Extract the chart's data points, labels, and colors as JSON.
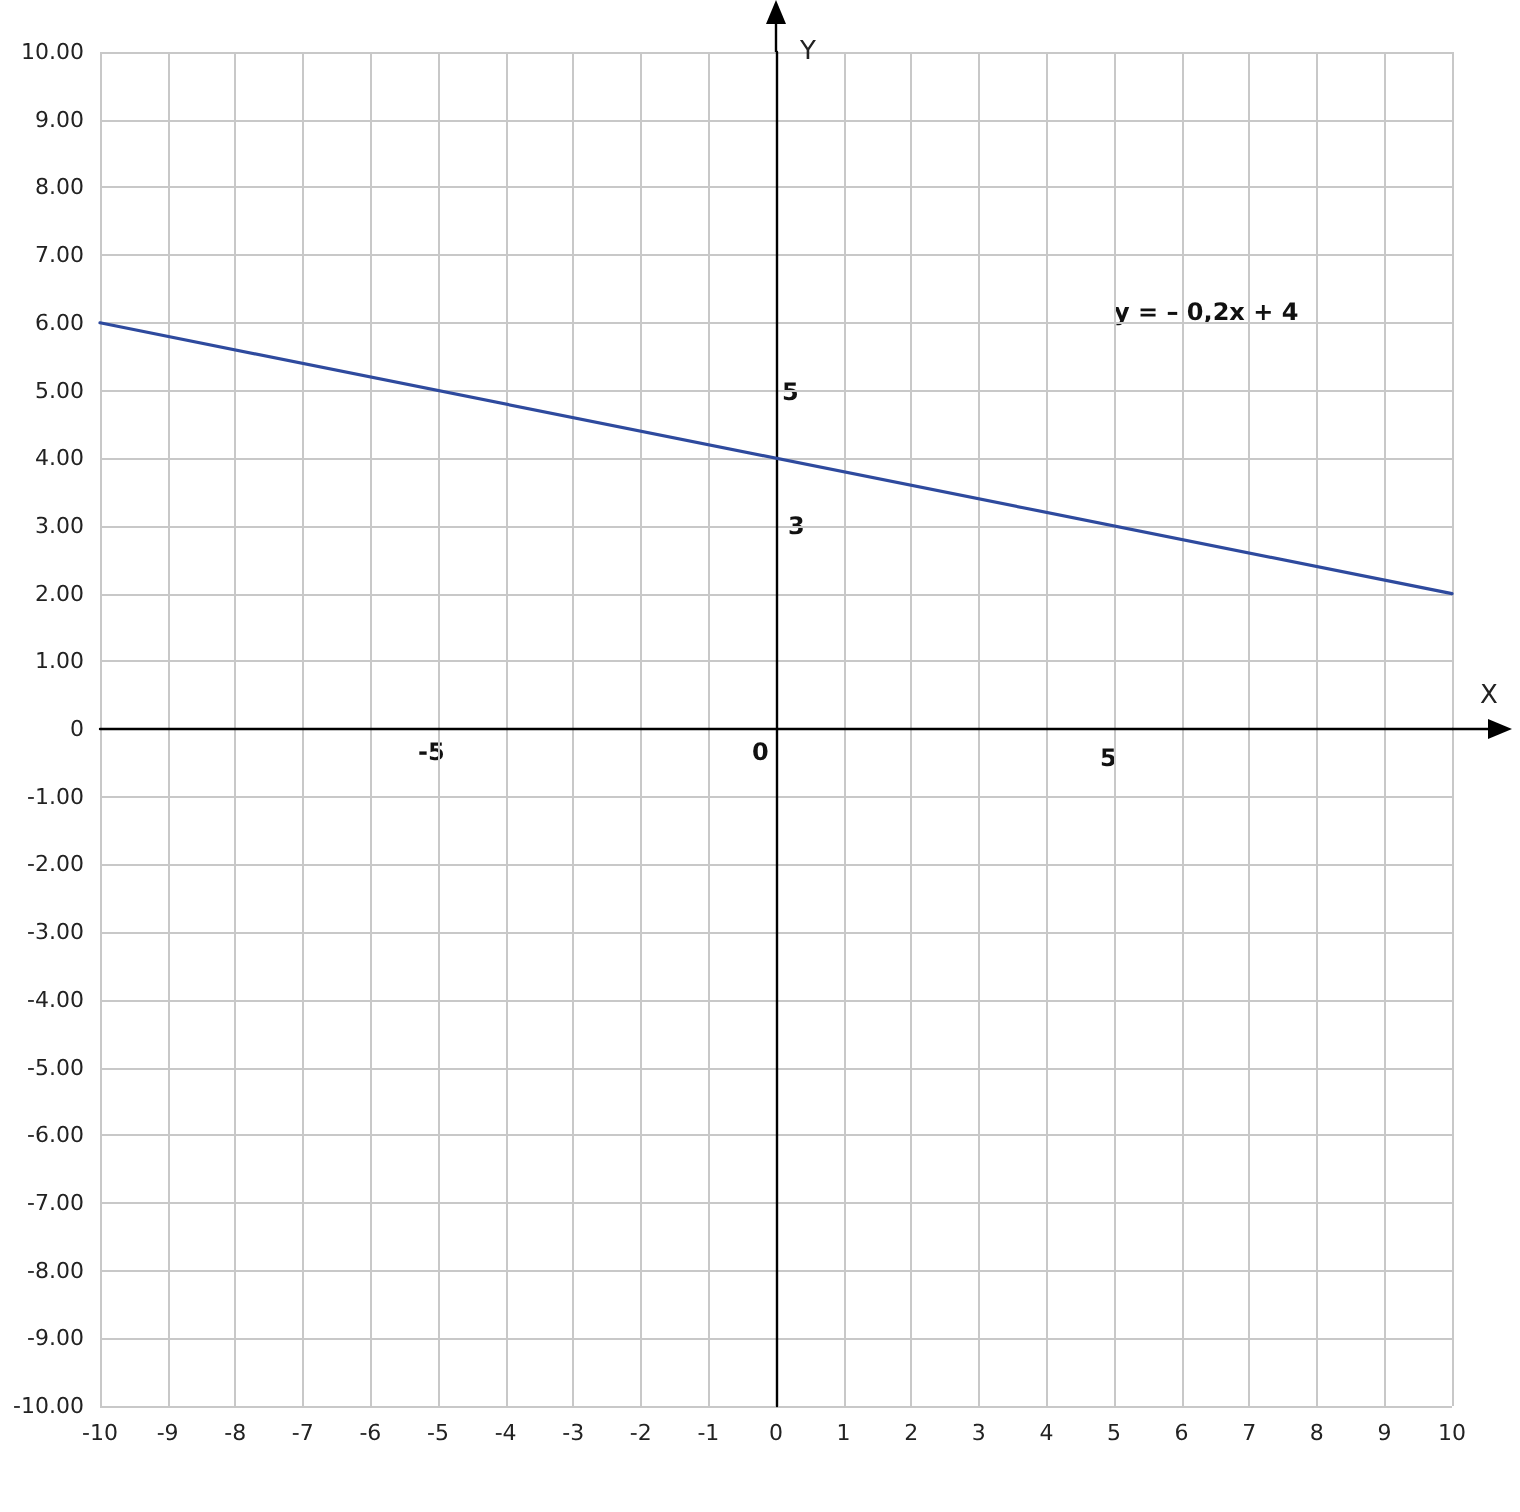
{
  "chart_data": {
    "type": "line",
    "xlabel": "X",
    "ylabel": "Y",
    "x": [
      -10,
      10
    ],
    "series": [
      {
        "color": "#2e4a9e",
        "values": [
          6,
          2
        ]
      }
    ],
    "xlim": [
      -10,
      10
    ],
    "xticks": [
      -10,
      -9,
      -8,
      -7,
      -6,
      -5,
      -4,
      -3,
      -2,
      -1,
      0,
      1,
      2,
      3,
      4,
      5,
      6,
      7,
      8,
      9,
      10
    ],
    "ylim": [
      -10,
      10
    ],
    "yticks": [
      {
        "value": -10,
        "label": "-10.00"
      },
      {
        "value": -9,
        "label": "-9.00"
      },
      {
        "value": -8,
        "label": "-8.00"
      },
      {
        "value": -7,
        "label": "-7.00"
      },
      {
        "value": -6,
        "label": "-6.00"
      },
      {
        "value": -5,
        "label": "-5.00"
      },
      {
        "value": -4,
        "label": "-4.00"
      },
      {
        "value": -3,
        "label": "-3.00"
      },
      {
        "value": -2,
        "label": "-2.00"
      },
      {
        "value": -1,
        "label": "-1.00"
      },
      {
        "value": 0,
        "label": "0"
      },
      {
        "value": 1,
        "label": "1.00"
      },
      {
        "value": 2,
        "label": "2.00"
      },
      {
        "value": 3,
        "label": "3.00"
      },
      {
        "value": 4,
        "label": "4.00"
      },
      {
        "value": 5,
        "label": "5.00"
      },
      {
        "value": 6,
        "label": "6.00"
      },
      {
        "value": 7,
        "label": "7.00"
      },
      {
        "value": 8,
        "label": "8.00"
      },
      {
        "value": 9,
        "label": "9.00"
      },
      {
        "value": 10,
        "label": "10.00"
      }
    ],
    "grid": true,
    "marker": "none",
    "line_style": "solid",
    "annotations": [
      "y = – 0,2x + 4",
      "-5",
      "0",
      "5",
      "5",
      "3"
    ]
  }
}
